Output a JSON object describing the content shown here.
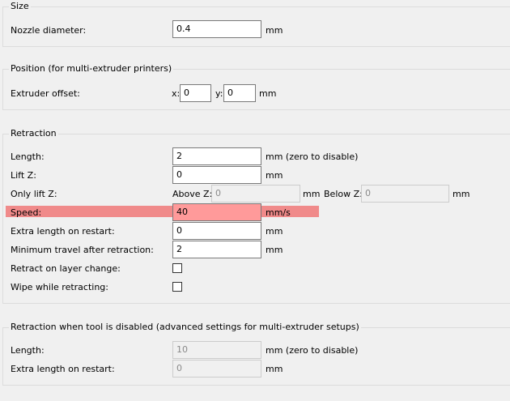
{
  "size": {
    "title": "Size",
    "nozzle_label": "Nozzle diameter:",
    "nozzle_value": "0.4",
    "unit": "mm"
  },
  "position": {
    "title": "Position (for multi-extruder printers)",
    "offset_label": "Extruder offset:",
    "x_label": "x:",
    "x_value": "0",
    "y_label": "y:",
    "y_value": "0",
    "unit": "mm"
  },
  "retraction": {
    "title": "Retraction",
    "length_label": "Length:",
    "length_value": "2",
    "length_unit": "mm (zero to disable)",
    "liftz_label": "Lift Z:",
    "liftz_value": "0",
    "liftz_unit": "mm",
    "onlylift_label": "Only lift Z:",
    "above_label": "Above Z:",
    "above_value": "0",
    "above_unit": "mm",
    "below_label": "Below Z:",
    "below_value": "0",
    "below_unit": "mm",
    "speed_label": "Speed:",
    "speed_value": "40",
    "speed_unit": "mm/s",
    "extra_label": "Extra length on restart:",
    "extra_value": "0",
    "extra_unit": "mm",
    "travel_label": "Minimum travel after retraction:",
    "travel_value": "2",
    "travel_unit": "mm",
    "layer_label": "Retract on layer change:",
    "layer_checked": false,
    "wipe_label": "Wipe while retracting:",
    "wipe_checked": false,
    "highlight_color": "#f08a8a"
  },
  "disabled": {
    "title": "Retraction when tool is disabled (advanced settings for multi-extruder setups)",
    "length_label": "Length:",
    "length_value": "10",
    "length_unit": "mm (zero to disable)",
    "extra_label": "Extra length on restart:",
    "extra_value": "0",
    "extra_unit": "mm"
  }
}
